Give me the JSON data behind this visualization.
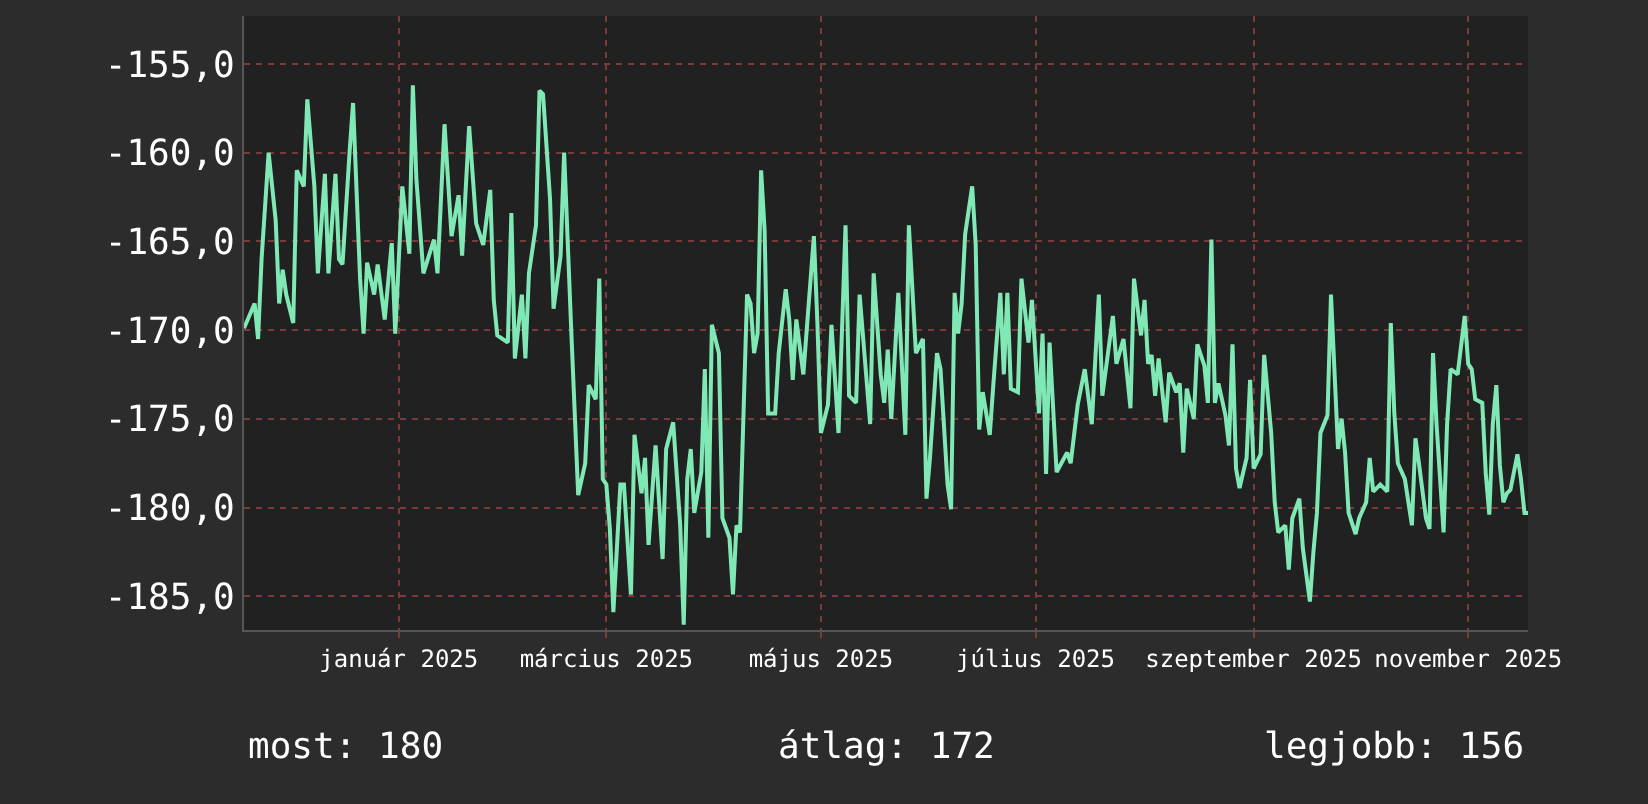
{
  "chart_data": {
    "type": "line",
    "x": [
      "2024-12-03",
      "2024-12-06",
      "2024-12-07",
      "2024-12-08",
      "2024-12-10",
      "2024-12-12",
      "2024-12-13",
      "2024-12-14",
      "2024-12-15",
      "2024-12-17",
      "2024-12-18",
      "2024-12-20",
      "2024-12-21",
      "2024-12-23",
      "2024-12-24",
      "2024-12-26",
      "2024-12-27",
      "2024-12-29",
      "2024-12-30",
      "2024-12-31",
      "2025-01-02",
      "2025-01-03",
      "2025-01-05",
      "2025-01-06",
      "2025-01-07",
      "2025-01-09",
      "2025-01-10",
      "2025-01-12",
      "2025-01-14",
      "2025-01-15",
      "2025-01-17",
      "2025-01-19",
      "2025-01-20",
      "2025-01-21",
      "2025-01-23",
      "2025-01-26",
      "2025-01-27",
      "2025-01-29",
      "2025-01-31",
      "2025-02-02",
      "2025-02-03",
      "2025-02-05",
      "2025-02-07",
      "2025-02-09",
      "2025-02-11",
      "2025-02-12",
      "2025-02-13",
      "2025-02-16",
      "2025-02-17",
      "2025-02-18",
      "2025-02-20",
      "2025-02-21",
      "2025-02-22",
      "2025-02-24",
      "2025-02-25",
      "2025-02-26",
      "2025-02-28",
      "2025-03-01",
      "2025-03-03",
      "2025-03-04",
      "2025-03-05",
      "2025-03-06",
      "2025-03-08",
      "2025-03-10",
      "2025-03-11",
      "2025-03-13",
      "2025-03-14",
      "2025-03-15",
      "2025-03-16",
      "2025-03-17",
      "2025-03-18",
      "2025-03-20",
      "2025-03-21",
      "2025-03-23",
      "2025-03-24",
      "2025-03-26",
      "2025-03-27",
      "2025-03-28",
      "2025-03-30",
      "2025-04-01",
      "2025-04-02",
      "2025-04-04",
      "2025-04-06",
      "2025-04-07",
      "2025-04-08",
      "2025-04-09",
      "2025-04-10",
      "2025-04-12",
      "2025-04-13",
      "2025-04-14",
      "2025-04-15",
      "2025-04-17",
      "2025-04-18",
      "2025-04-20",
      "2025-04-21",
      "2025-04-22",
      "2025-04-23",
      "2025-04-24",
      "2025-04-25",
      "2025-04-26",
      "2025-04-27",
      "2025-04-28",
      "2025-04-29",
      "2025-04-30",
      "2025-05-01",
      "2025-05-03",
      "2025-05-04",
      "2025-05-06",
      "2025-05-07",
      "2025-05-08",
      "2025-05-09",
      "2025-05-11",
      "2025-05-14",
      "2025-05-15",
      "2025-05-16",
      "2025-05-18",
      "2025-05-19",
      "2025-05-21",
      "2025-05-23",
      "2025-05-24",
      "2025-05-26",
      "2025-05-27",
      "2025-05-30",
      "2025-05-31",
      "2025-06-02",
      "2025-06-03",
      "2025-06-04",
      "2025-06-05",
      "2025-06-07",
      "2025-06-09",
      "2025-06-10",
      "2025-06-12",
      "2025-06-14",
      "2025-06-15",
      "2025-06-16",
      "2025-06-18",
      "2025-06-19",
      "2025-06-21",
      "2025-06-22",
      "2025-06-23",
      "2025-06-24",
      "2025-06-25",
      "2025-06-26",
      "2025-06-28",
      "2025-06-29",
      "2025-06-30",
      "2025-07-01",
      "2025-07-03",
      "2025-07-04",
      "2025-07-06",
      "2025-07-07",
      "2025-07-08",
      "2025-07-09",
      "2025-07-11",
      "2025-07-12",
      "2025-07-14",
      "2025-07-15",
      "2025-07-17",
      "2025-07-18",
      "2025-07-19",
      "2025-07-20",
      "2025-07-22",
      "2025-07-25",
      "2025-07-26",
      "2025-07-28",
      "2025-07-30",
      "2025-08-01",
      "2025-08-03",
      "2025-08-04",
      "2025-08-07",
      "2025-08-08",
      "2025-08-10",
      "2025-08-12",
      "2025-08-13",
      "2025-08-15",
      "2025-08-16",
      "2025-08-17",
      "2025-08-18",
      "2025-08-19",
      "2025-08-20",
      "2025-08-22",
      "2025-08-23",
      "2025-08-25",
      "2025-08-26",
      "2025-08-27",
      "2025-08-28",
      "2025-08-30",
      "2025-08-31",
      "2025-09-02",
      "2025-09-03",
      "2025-09-04",
      "2025-09-05",
      "2025-09-06",
      "2025-09-08",
      "2025-09-09",
      "2025-09-10",
      "2025-09-11",
      "2025-09-12",
      "2025-09-14",
      "2025-09-15",
      "2025-09-16",
      "2025-09-18",
      "2025-09-19",
      "2025-09-21",
      "2025-09-22",
      "2025-09-23",
      "2025-09-25",
      "2025-09-26",
      "2025-09-27",
      "2025-09-29",
      "2025-09-30",
      "2025-10-02",
      "2025-10-03",
      "2025-10-04",
      "2025-10-05",
      "2025-10-07",
      "2025-10-08",
      "2025-10-10",
      "2025-10-11",
      "2025-10-12",
      "2025-10-13",
      "2025-10-15",
      "2025-10-16",
      "2025-10-18",
      "2025-10-19",
      "2025-10-20",
      "2025-10-22",
      "2025-10-24",
      "2025-10-25",
      "2025-10-26",
      "2025-10-27",
      "2025-10-29",
      "2025-10-30",
      "2025-10-31",
      "2025-11-01",
      "2025-11-02",
      "2025-11-04",
      "2025-11-05",
      "2025-11-06",
      "2025-11-07",
      "2025-11-09",
      "2025-11-10",
      "2025-11-11",
      "2025-11-13",
      "2025-11-15",
      "2025-11-16",
      "2025-11-17",
      "2025-11-18",
      "2025-11-20",
      "2025-11-21",
      "2025-11-22",
      "2025-11-23",
      "2025-11-24",
      "2025-11-25",
      "2025-11-26",
      "2025-11-27",
      "2025-11-28",
      "2025-11-30",
      "2025-12-01",
      "2025-12-02",
      "2025-12-03"
    ],
    "series": [
      {
        "color": "#7fe8b5",
        "values": [
          -169.9,
          -168.5,
          -170.5,
          -166,
          -160,
          -163.8,
          -168.5,
          -166.6,
          -168,
          -169.6,
          -161,
          -161.9,
          -157,
          -161.9,
          -166.8,
          -161.2,
          -166.8,
          -161.2,
          -166,
          -166.3,
          -160,
          -157.2,
          -167.1,
          -170.2,
          -166.2,
          -168,
          -166.3,
          -169.4,
          -165.1,
          -170.2,
          -161.9,
          -165.7,
          -156.2,
          -161.5,
          -166.8,
          -164.9,
          -166.8,
          -158.4,
          -164.7,
          -162.4,
          -165.8,
          -158.5,
          -164,
          -165.2,
          -162.1,
          -168.3,
          -170.3,
          -170.7,
          -163.4,
          -171.6,
          -168,
          -171.6,
          -166.8,
          -164.1,
          -156.5,
          -156.7,
          -162.6,
          -168.8,
          -165.8,
          -160,
          -164.9,
          -169.9,
          -179.3,
          -177.5,
          -173.1,
          -173.9,
          -167.1,
          -178.4,
          -178.7,
          -181.2,
          -185.9,
          -178.7,
          -178.7,
          -184.9,
          -175.9,
          -179.2,
          -177.2,
          -182.1,
          -176.5,
          -182.9,
          -176.7,
          -175.2,
          -181,
          -186.6,
          -178.4,
          -176.7,
          -180.3,
          -178,
          -172.2,
          -181.7,
          -169.7,
          -171.3,
          -180.6,
          -181.7,
          -184.9,
          -181,
          -181.4,
          -174.7,
          -168,
          -168.5,
          -171.3,
          -170.2,
          -161,
          -164.4,
          -174.7,
          -174.7,
          -171.3,
          -167.7,
          -169.4,
          -172.8,
          -169.4,
          -172.5,
          -164.7,
          -169.6,
          -175.8,
          -174.2,
          -169.7,
          -175.8,
          -164.1,
          -173.7,
          -174.1,
          -168,
          -175.3,
          -166.8,
          -172.5,
          -174.1,
          -171.1,
          -175,
          -167.9,
          -175.9,
          -164.1,
          -171.3,
          -170.5,
          -179.5,
          -177.2,
          -171.3,
          -172.2,
          -178.7,
          -180.1,
          -167.9,
          -170.2,
          -168.5,
          -164.6,
          -161.9,
          -165.2,
          -175.6,
          -173.5,
          -175.9,
          -173.1,
          -167.9,
          -172.5,
          -167.9,
          -173.3,
          -173.5,
          -167.1,
          -170.7,
          -168.3,
          -174.7,
          -170.2,
          -178.1,
          -170.7,
          -178,
          -176.9,
          -177.5,
          -174.2,
          -172.2,
          -175.3,
          -168,
          -173.7,
          -169.2,
          -171.9,
          -170.5,
          -174.4,
          -167.1,
          -170.3,
          -168.3,
          -171.9,
          -171.4,
          -173.7,
          -171.6,
          -175.2,
          -172.4,
          -173.5,
          -173,
          -176.9,
          -173.3,
          -175,
          -170.8,
          -172,
          -174.1,
          -164.9,
          -174.1,
          -173,
          -174.8,
          -176.5,
          -170.8,
          -177.8,
          -178.9,
          -177.2,
          -172.8,
          -177.8,
          -177,
          -171.4,
          -175.8,
          -179.7,
          -181.4,
          -181,
          -183.5,
          -180.6,
          -179.5,
          -182.3,
          -185.3,
          -182.5,
          -180.3,
          -175.8,
          -174.8,
          -168,
          -176.7,
          -175,
          -176.9,
          -180.3,
          -181.5,
          -180.6,
          -179.7,
          -177.2,
          -179.1,
          -178.7,
          -179.1,
          -169.6,
          -174.7,
          -177.5,
          -178.4,
          -179.7,
          -181,
          -176.1,
          -177.5,
          -180.6,
          -181.2,
          -171.3,
          -175.3,
          -181.4,
          -175.3,
          -172.2,
          -172.5,
          -169.2,
          -171.9,
          -172.2,
          -173.9,
          -174.1,
          -178.1,
          -180.4,
          -175.3,
          -173.1,
          -177.6,
          -179.7,
          -179.2,
          -179,
          -177,
          -178.4,
          -180.3,
          -180.3
        ]
      }
    ],
    "xlim": [
      "2024-12-03",
      "2025-12-03"
    ],
    "xticks": [
      {
        "value": "2025-01-16",
        "label": "január 2025"
      },
      {
        "value": "2025-03-16",
        "label": "március 2025"
      },
      {
        "value": "2025-05-16",
        "label": "május 2025"
      },
      {
        "value": "2025-07-16",
        "label": "július 2025"
      },
      {
        "value": "2025-09-16",
        "label": "szeptember 2025"
      },
      {
        "value": "2025-11-16",
        "label": "november 2025"
      }
    ],
    "ylim": [
      -186.9,
      -152.3
    ],
    "yticks": [
      {
        "value": -155,
        "label": "-155,0"
      },
      {
        "value": -160,
        "label": "-160,0"
      },
      {
        "value": -165,
        "label": "-165,0"
      },
      {
        "value": -170,
        "label": "-170,0"
      },
      {
        "value": -175,
        "label": "-175,0"
      },
      {
        "value": -180,
        "label": "-180,0"
      },
      {
        "value": -185,
        "label": "-185,0"
      }
    ],
    "grid": true,
    "line_style": "solid",
    "annotations": [
      "most: 180",
      "átlag: 172",
      "legjobb: 156"
    ]
  }
}
